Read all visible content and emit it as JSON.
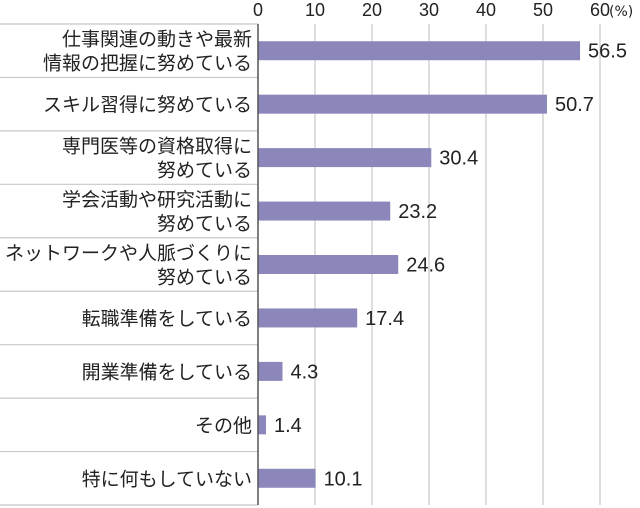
{
  "chart_data": {
    "type": "bar",
    "orientation": "horizontal",
    "title": "",
    "xlabel": "",
    "ylabel": "",
    "unit": "(%)",
    "xlim": [
      0,
      60
    ],
    "xticks": [
      "0",
      "10",
      "20",
      "30",
      "40",
      "50",
      "60"
    ],
    "grid": true,
    "categories": [
      [
        "仕事関連の動きや最新",
        "情報の把握に努めている"
      ],
      [
        "スキル習得に努めている"
      ],
      [
        "専門医等の資格取得に",
        "努めている"
      ],
      [
        "学会活動や研究活動に",
        "努めている"
      ],
      [
        "ネットワークや人脈づくりに",
        "努めている"
      ],
      [
        "転職準備をしている"
      ],
      [
        "開業準備をしている"
      ],
      [
        "その他"
      ],
      [
        "特に何もしていない"
      ]
    ],
    "values": [
      56.5,
      50.7,
      30.4,
      23.2,
      24.6,
      17.4,
      4.3,
      1.4,
      10.1
    ],
    "value_labels": [
      "56.5",
      "50.7",
      "30.4",
      "23.2",
      "24.6",
      "17.4",
      "4.3",
      "1.4",
      "10.1"
    ],
    "colors": {
      "bar": "#8c87bb",
      "grid": "#c8c8c8",
      "axis": "#555555",
      "text": "#222222"
    }
  }
}
